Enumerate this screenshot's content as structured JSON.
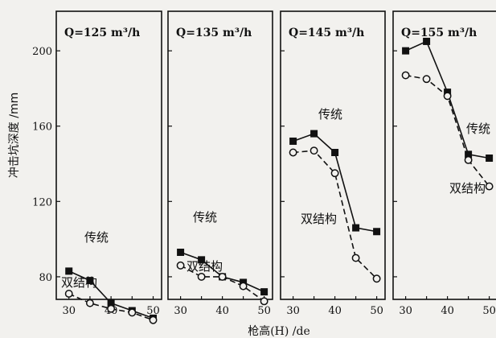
{
  "chart_data": {
    "type": "line",
    "ylabel": "冲击坑深度 /mm",
    "xlabel": "枪高(H) /de",
    "x_ticks": [
      30,
      40,
      50
    ],
    "y_ticks": [
      80,
      120,
      160,
      200
    ],
    "ylim": [
      68,
      221
    ],
    "xlim": [
      27,
      52
    ],
    "panels": [
      {
        "flow_label": "Q=125 m³/h",
        "x": [
          30,
          35,
          40,
          45,
          50
        ],
        "series": [
          {
            "name": "传统",
            "marker": "filled-square",
            "line": "solid",
            "values": [
              83,
              78,
              66,
              62,
              58
            ]
          },
          {
            "name": "双结构",
            "marker": "open-circle",
            "line": "dashed",
            "values": [
              71,
              66,
              63,
              61,
              57
            ]
          }
        ]
      },
      {
        "flow_label": "Q=135 m³/h",
        "x": [
          30,
          35,
          40,
          45,
          50
        ],
        "series": [
          {
            "name": "传统",
            "marker": "filled-square",
            "line": "solid",
            "values": [
              93,
              89,
              80,
              77,
              72
            ]
          },
          {
            "name": "双结构",
            "marker": "open-circle",
            "line": "dashed",
            "values": [
              86,
              80,
              80,
              75,
              67
            ]
          }
        ]
      },
      {
        "flow_label": "Q=145 m³/h",
        "x": [
          30,
          35,
          40,
          45,
          50
        ],
        "series": [
          {
            "name": "传统",
            "marker": "filled-square",
            "line": "solid",
            "values": [
              152,
              156,
              146,
              106,
              104
            ]
          },
          {
            "name": "双结构",
            "marker": "open-circle",
            "line": "dashed",
            "values": [
              146,
              147,
              135,
              90,
              79
            ]
          }
        ]
      },
      {
        "flow_label": "Q=155 m³/h",
        "x": [
          30,
          35,
          40,
          45,
          50
        ],
        "series": [
          {
            "name": "传统",
            "marker": "filled-square",
            "line": "solid",
            "values": [
              200,
              205,
              178,
              145,
              143
            ]
          },
          {
            "name": "双结构",
            "marker": "open-circle",
            "line": "dashed",
            "values": [
              187,
              185,
              176,
              142,
              128
            ]
          }
        ]
      }
    ]
  }
}
